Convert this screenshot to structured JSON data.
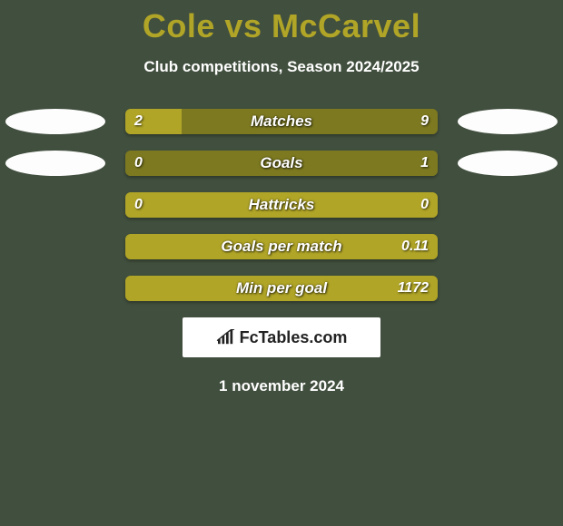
{
  "background_color": "#414f3e",
  "accent_color": "#b0a527",
  "bar_dark_color": "#7c7920",
  "text_color": "#ffffff",
  "oval_color": "#fdfdfd",
  "title": "Cole vs McCarvel",
  "title_fontsize": 36,
  "title_color": "#b0a527",
  "subtitle": "Club competitions, Season 2024/2025",
  "subtitle_fontsize": 17,
  "chart": {
    "type": "bar-comparison",
    "bar_height_pt": 28,
    "bar_radius": 6,
    "label_fontsize": 17,
    "value_fontsize": 16,
    "rows": [
      {
        "label": "Matches",
        "left": "2",
        "right": "9",
        "left_pct": 18,
        "show_ovals": true
      },
      {
        "label": "Goals",
        "left": "0",
        "right": "1",
        "left_pct": 0,
        "show_ovals": true
      },
      {
        "label": "Hattricks",
        "left": "0",
        "right": "0",
        "left_pct": 100,
        "show_ovals": false
      },
      {
        "label": "Goals per match",
        "left": "",
        "right": "0.11",
        "left_pct": 100,
        "show_ovals": false
      },
      {
        "label": "Min per goal",
        "left": "",
        "right": "1172",
        "left_pct": 100,
        "show_ovals": false
      }
    ]
  },
  "brand": {
    "text": "FcTables.com",
    "box_bg": "#ffffff",
    "text_color": "#222222",
    "fontsize": 18
  },
  "date": "1 november 2024",
  "date_fontsize": 17
}
